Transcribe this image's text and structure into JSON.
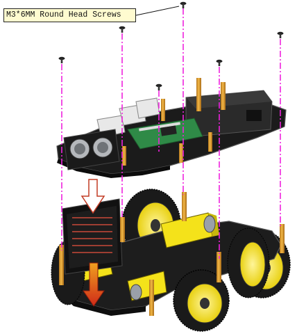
{
  "callout": {
    "label": "M3*6MM Round Head Screws"
  },
  "colors": {
    "guide_line": "#ee22dd",
    "chassis": "#1b1b1b",
    "chassis_edge": "#4a4a4a",
    "standoff": "#e2a029",
    "motor_yellow": "#f4e21a",
    "wheel_rim": "#f2e01a",
    "tire": "#1a1a1a",
    "pcb_green": "#2f8a47",
    "arrow_outline": "#c23b24",
    "arrow_fill": "#d8401f",
    "led_panel": "#111111",
    "battery_box": "#2a2a2a"
  },
  "icons": {
    "screw": "screw-icon",
    "down_arrow_hollow": "down-arrow-hollow-icon",
    "down_arrow_filled": "down-arrow-filled-icon"
  }
}
